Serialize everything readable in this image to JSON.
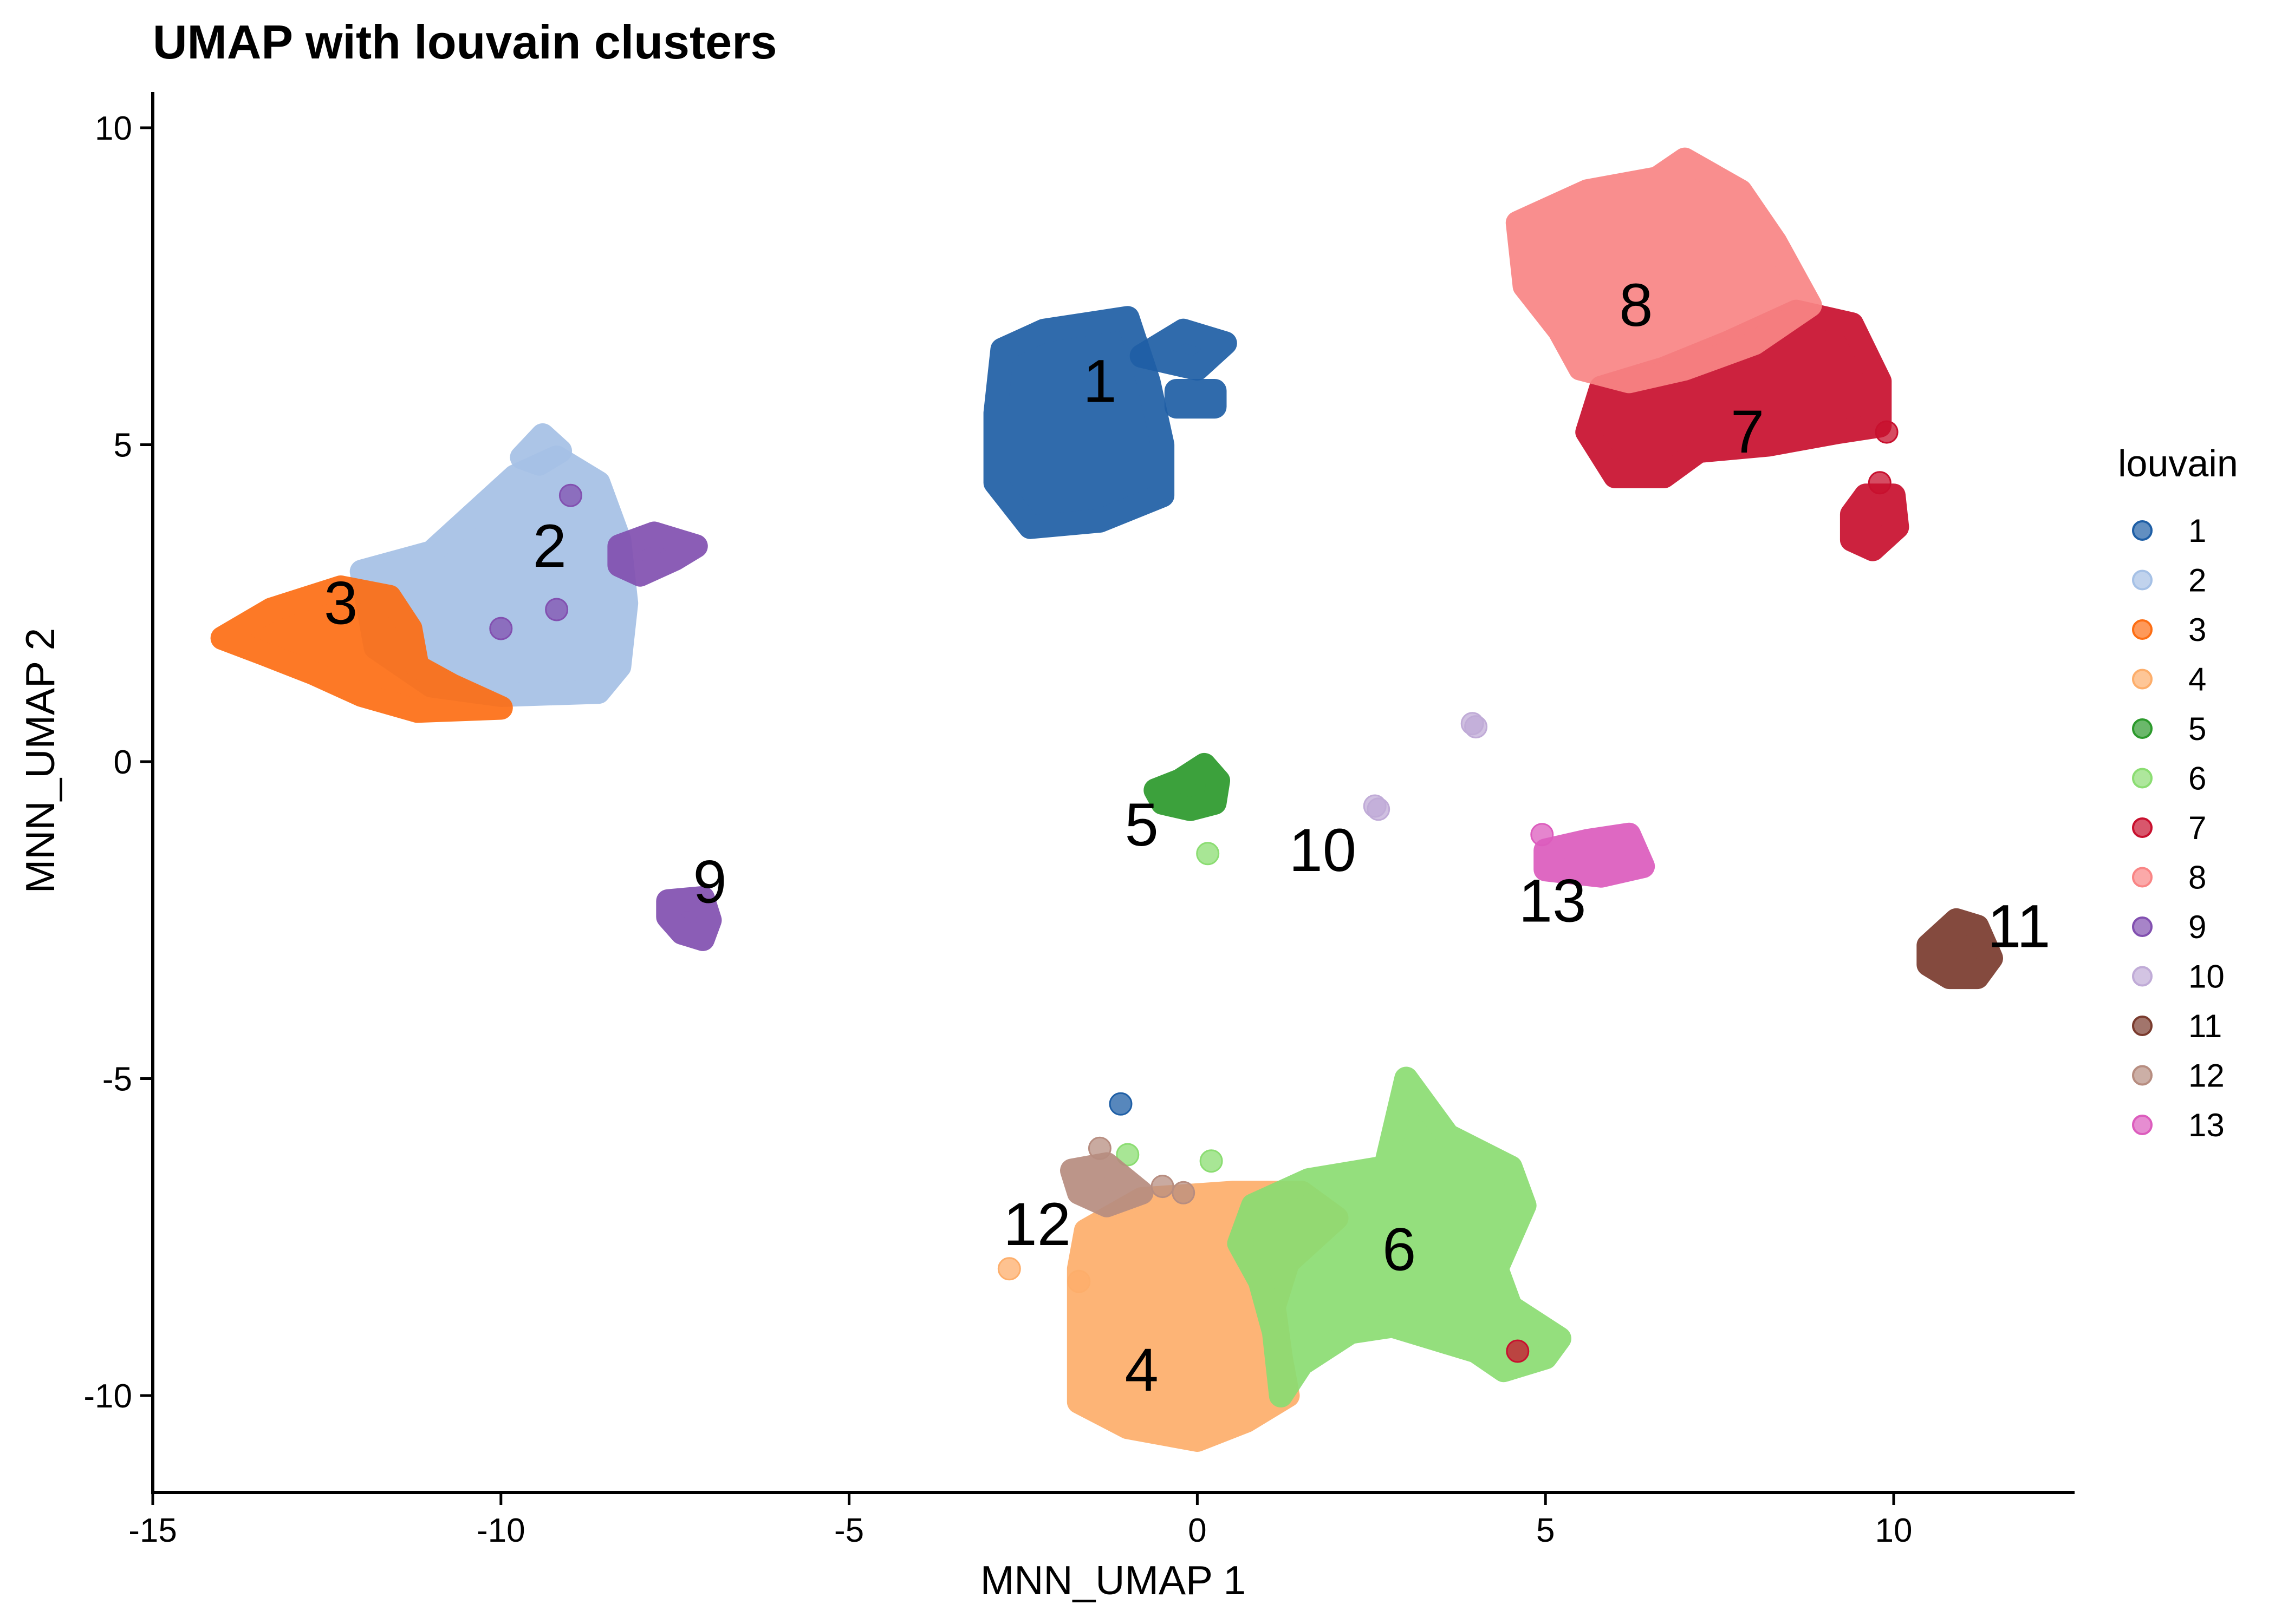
{
  "chart_data": {
    "type": "scatter",
    "title": "UMAP with louvain clusters",
    "xlabel": "MNN_UMAP 1",
    "ylabel": "MNN_UMAP 2",
    "xlim": [
      -15,
      12.6
    ],
    "ylim": [
      -11.6,
      10.5
    ],
    "xticks": [
      -15,
      -10,
      -5,
      0,
      5,
      10
    ],
    "xtick_labels": [
      "-15",
      "-10",
      "-5",
      "0",
      "5",
      "10"
    ],
    "yticks": [
      10,
      5,
      0,
      -5,
      -10
    ],
    "ytick_labels": [
      "10",
      "5",
      "0",
      "-5",
      "-10"
    ],
    "grid": false,
    "legend": {
      "title": "louvain",
      "position": "right"
    },
    "series": [
      {
        "name": "1",
        "color": "#1f5fa6",
        "label_pos": [
          -1.4,
          6.0
        ],
        "blobs": [
          {
            "points": [
              [
                -2.8,
                6.5
              ],
              [
                -2.2,
                6.8
              ],
              [
                -1.0,
                7.0
              ],
              [
                -0.7,
                6.0
              ],
              [
                -0.5,
                5.0
              ],
              [
                -0.5,
                4.2
              ],
              [
                -1.4,
                3.8
              ],
              [
                -2.4,
                3.7
              ],
              [
                -2.9,
                4.4
              ],
              [
                -2.9,
                5.5
              ]
            ]
          },
          {
            "points": [
              [
                -0.8,
                6.4
              ],
              [
                0.0,
                6.2
              ],
              [
                0.4,
                6.6
              ],
              [
                -0.2,
                6.8
              ]
            ]
          },
          {
            "points": [
              [
                -0.3,
                5.6
              ],
              [
                0.25,
                5.6
              ],
              [
                0.25,
                5.85
              ],
              [
                -0.3,
                5.85
              ]
            ]
          }
        ],
        "dots": [
          [
            -1.1,
            -5.4
          ]
        ]
      },
      {
        "name": "2",
        "color": "#a6c1e6",
        "label_pos": [
          -9.3,
          3.4
        ],
        "blobs": [
          {
            "points": [
              [
                -12.0,
                3.0
              ],
              [
                -11.0,
                3.3
              ],
              [
                -10.5,
                3.8
              ],
              [
                -9.8,
                4.5
              ],
              [
                -9.2,
                4.8
              ],
              [
                -8.6,
                4.4
              ],
              [
                -8.3,
                3.5
              ],
              [
                -8.2,
                2.5
              ],
              [
                -8.3,
                1.5
              ],
              [
                -8.6,
                1.1
              ],
              [
                -10.0,
                1.05
              ],
              [
                -11.0,
                1.2
              ],
              [
                -11.8,
                1.8
              ]
            ]
          },
          {
            "points": [
              [
                -9.7,
                4.8
              ],
              [
                -9.4,
                5.15
              ],
              [
                -9.15,
                4.9
              ],
              [
                -9.45,
                4.7
              ]
            ]
          }
        ],
        "dots": []
      },
      {
        "name": "3",
        "color": "#fd6e14",
        "label_pos": [
          -12.3,
          2.5
        ],
        "blobs": [
          {
            "points": [
              [
                -14.0,
                1.95
              ],
              [
                -13.3,
                2.4
              ],
              [
                -12.3,
                2.75
              ],
              [
                -11.6,
                2.6
              ],
              [
                -11.3,
                2.1
              ],
              [
                -11.2,
                1.5
              ],
              [
                -10.7,
                1.2
              ],
              [
                -10.0,
                0.85
              ],
              [
                -11.2,
                0.8
              ],
              [
                -12.0,
                1.05
              ],
              [
                -12.7,
                1.4
              ],
              [
                -13.4,
                1.7
              ]
            ]
          }
        ],
        "dots": []
      },
      {
        "name": "4",
        "color": "#fdae6b",
        "label_pos": [
          -0.8,
          -9.6
        ],
        "blobs": [
          {
            "points": [
              [
                -1.6,
                -7.4
              ],
              [
                -0.8,
                -6.9
              ],
              [
                0.5,
                -6.8
              ],
              [
                1.5,
                -6.8
              ],
              [
                2.0,
                -7.2
              ],
              [
                1.3,
                -7.9
              ],
              [
                1.1,
                -8.6
              ],
              [
                1.2,
                -9.4
              ],
              [
                1.3,
                -10.0
              ],
              [
                0.7,
                -10.4
              ],
              [
                0.0,
                -10.7
              ],
              [
                -1.0,
                -10.5
              ],
              [
                -1.7,
                -10.1
              ],
              [
                -1.7,
                -9.0
              ],
              [
                -1.7,
                -8.0
              ]
            ]
          }
        ],
        "dots": [
          [
            -2.7,
            -8.0
          ],
          [
            -1.7,
            -8.2
          ]
        ]
      },
      {
        "name": "5",
        "color": "#2c9a2c",
        "label_pos": [
          -0.8,
          -1.0
        ],
        "blobs": [
          {
            "points": [
              [
                -0.6,
                -0.45
              ],
              [
                -0.25,
                -0.3
              ],
              [
                0.1,
                -0.05
              ],
              [
                0.3,
                -0.3
              ],
              [
                0.25,
                -0.65
              ],
              [
                -0.1,
                -0.75
              ],
              [
                -0.5,
                -0.65
              ]
            ]
          }
        ],
        "dots": []
      },
      {
        "name": "6",
        "color": "#8bdd72",
        "label_pos": [
          2.9,
          -7.7
        ],
        "blobs": [
          {
            "points": [
              [
                0.8,
                -7.0
              ],
              [
                1.6,
                -6.6
              ],
              [
                2.7,
                -6.4
              ],
              [
                3.0,
                -5.0
              ],
              [
                3.6,
                -5.9
              ],
              [
                4.5,
                -6.4
              ],
              [
                4.7,
                -7.0
              ],
              [
                4.3,
                -8.0
              ],
              [
                4.5,
                -8.6
              ],
              [
                5.2,
                -9.1
              ],
              [
                5.0,
                -9.4
              ],
              [
                4.4,
                -9.6
              ],
              [
                4.0,
                -9.3
              ],
              [
                3.4,
                -9.1
              ],
              [
                2.8,
                -8.9
              ],
              [
                2.2,
                -9.0
              ],
              [
                1.5,
                -9.5
              ],
              [
                1.2,
                -10.0
              ],
              [
                1.1,
                -9.0
              ],
              [
                0.9,
                -8.2
              ],
              [
                0.6,
                -7.6
              ]
            ]
          }
        ],
        "dots": [
          [
            0.15,
            -1.45
          ],
          [
            -1.0,
            -6.2
          ],
          [
            0.2,
            -6.3
          ]
        ]
      },
      {
        "name": "7",
        "color": "#c8102e",
        "label_pos": [
          7.9,
          5.2
        ],
        "blobs": [
          {
            "points": [
              [
                5.8,
                5.9
              ],
              [
                6.7,
                6.2
              ],
              [
                7.6,
                6.6
              ],
              [
                8.6,
                7.1
              ],
              [
                9.4,
                6.9
              ],
              [
                9.8,
                6.0
              ],
              [
                9.8,
                5.3
              ],
              [
                9.2,
                5.2
              ],
              [
                8.2,
                5.0
              ],
              [
                7.2,
                4.9
              ],
              [
                6.7,
                4.5
              ],
              [
                6.0,
                4.5
              ],
              [
                5.6,
                5.2
              ]
            ]
          },
          {
            "points": [
              [
                9.4,
                3.9
              ],
              [
                9.6,
                4.2
              ],
              [
                10.0,
                4.2
              ],
              [
                10.05,
                3.7
              ],
              [
                9.7,
                3.35
              ],
              [
                9.4,
                3.5
              ]
            ]
          }
        ],
        "dots": [
          [
            9.8,
            4.4
          ],
          [
            9.9,
            5.2
          ],
          [
            4.6,
            -9.3
          ]
        ]
      },
      {
        "name": "8",
        "color": "#f98585",
        "label_pos": [
          6.3,
          7.2
        ],
        "blobs": [
          {
            "points": [
              [
                4.6,
                8.5
              ],
              [
                5.6,
                9.0
              ],
              [
                6.6,
                9.2
              ],
              [
                7.0,
                9.5
              ],
              [
                7.8,
                9.0
              ],
              [
                8.3,
                8.2
              ],
              [
                8.8,
                7.2
              ],
              [
                8.0,
                6.6
              ],
              [
                7.0,
                6.2
              ],
              [
                6.2,
                6.0
              ],
              [
                5.5,
                6.2
              ],
              [
                5.2,
                6.8
              ],
              [
                4.7,
                7.5
              ]
            ]
          }
        ],
        "dots": []
      },
      {
        "name": "9",
        "color": "#8250b0",
        "label_pos": [
          -7.0,
          -1.9
        ],
        "blobs": [
          {
            "points": [
              [
                -7.6,
                -2.2
              ],
              [
                -7.1,
                -2.15
              ],
              [
                -7.0,
                -2.5
              ],
              [
                -7.1,
                -2.8
              ],
              [
                -7.4,
                -2.7
              ],
              [
                -7.6,
                -2.45
              ]
            ]
          },
          {
            "points": [
              [
                -8.3,
                3.4
              ],
              [
                -7.8,
                3.6
              ],
              [
                -7.2,
                3.4
              ],
              [
                -7.5,
                3.2
              ],
              [
                -8.0,
                2.95
              ],
              [
                -8.3,
                3.1
              ]
            ]
          }
        ],
        "dots": [
          [
            -9.0,
            4.2
          ],
          [
            -10.0,
            2.1
          ],
          [
            -9.2,
            2.4
          ]
        ]
      },
      {
        "name": "10",
        "color": "#c0abd7",
        "label_pos": [
          1.8,
          -1.4
        ],
        "blobs": [],
        "dots": [
          [
            3.95,
            0.6
          ],
          [
            4.0,
            0.55
          ],
          [
            2.6,
            -0.75
          ],
          [
            2.55,
            -0.7
          ]
        ]
      },
      {
        "name": "11",
        "color": "#7a3b2e",
        "label_pos": [
          11.8,
          -2.6
        ],
        "blobs": [
          {
            "points": [
              [
                10.5,
                -2.9
              ],
              [
                10.9,
                -2.5
              ],
              [
                11.2,
                -2.6
              ],
              [
                11.4,
                -3.1
              ],
              [
                11.2,
                -3.4
              ],
              [
                10.8,
                -3.4
              ],
              [
                10.5,
                -3.2
              ]
            ]
          }
        ],
        "dots": []
      },
      {
        "name": "12",
        "color": "#b78d80",
        "label_pos": [
          -2.3,
          -7.3
        ],
        "blobs": [
          {
            "points": [
              [
                -1.8,
                -6.45
              ],
              [
                -1.3,
                -6.35
              ],
              [
                -0.8,
                -6.8
              ],
              [
                -1.3,
                -7.0
              ],
              [
                -1.7,
                -6.8
              ]
            ]
          }
        ],
        "dots": [
          [
            -1.4,
            -6.1
          ],
          [
            -0.5,
            -6.7
          ],
          [
            -0.2,
            -6.8
          ]
        ]
      },
      {
        "name": "13",
        "color": "#dc5cbd",
        "label_pos": [
          5.1,
          -2.2
        ],
        "blobs": [
          {
            "points": [
              [
                5.0,
                -1.4
              ],
              [
                5.6,
                -1.25
              ],
              [
                6.2,
                -1.15
              ],
              [
                6.4,
                -1.65
              ],
              [
                5.8,
                -1.8
              ],
              [
                5.0,
                -1.7
              ]
            ]
          }
        ],
        "dots": [
          [
            4.95,
            -1.15
          ]
        ]
      }
    ]
  }
}
